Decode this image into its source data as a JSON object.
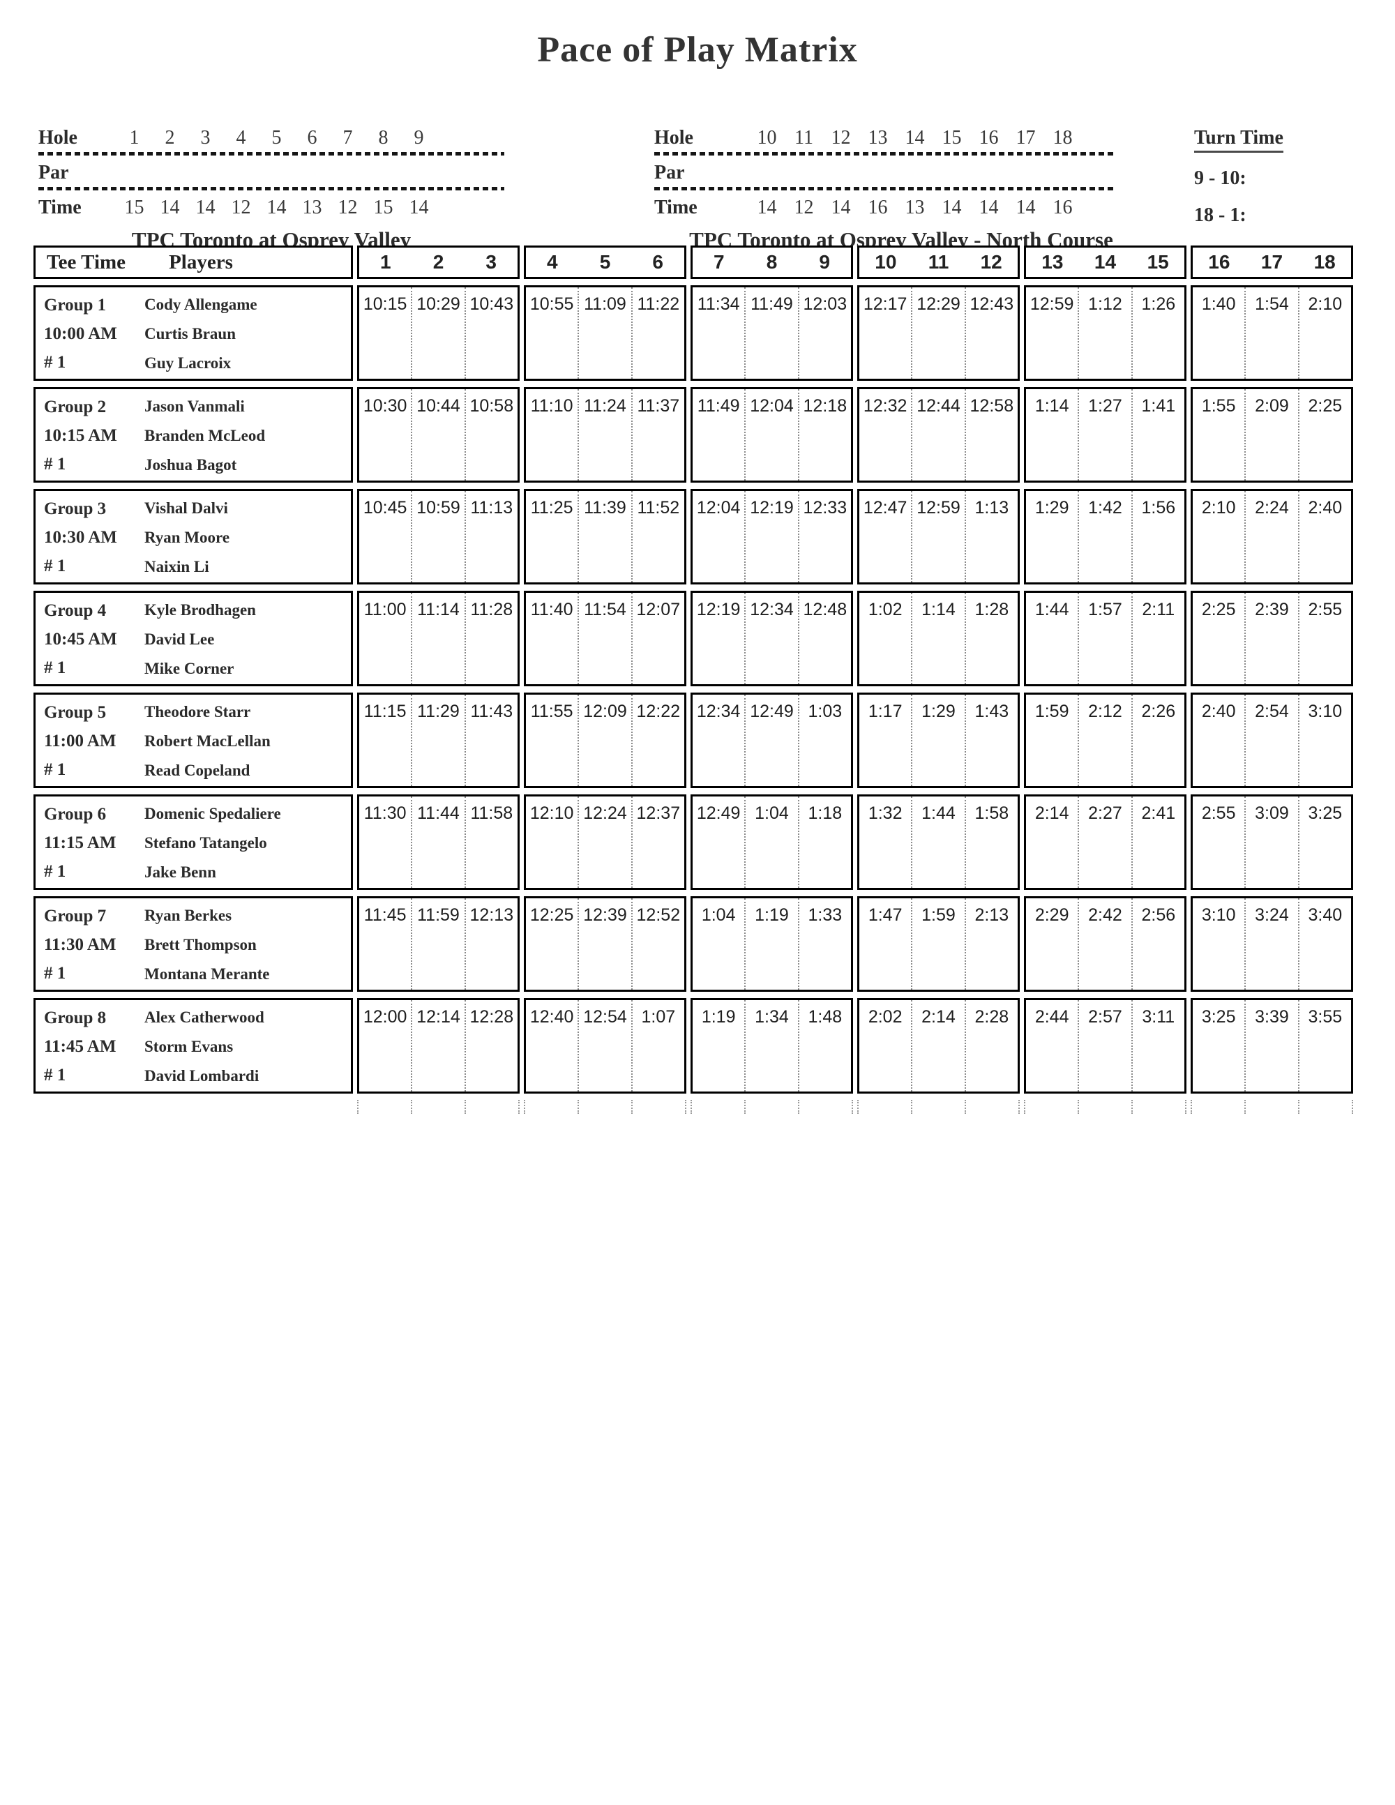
{
  "title": "Pace of Play Matrix",
  "front_nine": {
    "hole_label": "Hole",
    "par_label": "Par",
    "time_label": "Time",
    "holes": [
      "1",
      "2",
      "3",
      "4",
      "5",
      "6",
      "7",
      "8",
      "9"
    ],
    "times": [
      "15",
      "14",
      "14",
      "12",
      "14",
      "13",
      "12",
      "15",
      "14"
    ],
    "course": "TPC Toronto at Osprey Valley"
  },
  "back_nine": {
    "hole_label": "Hole",
    "par_label": "Par",
    "time_label": "Time",
    "holes": [
      "10",
      "11",
      "12",
      "13",
      "14",
      "15",
      "16",
      "17",
      "18"
    ],
    "times": [
      "14",
      "12",
      "14",
      "16",
      "13",
      "14",
      "14",
      "14",
      "16"
    ],
    "course": "TPC Toronto at Osprey Valley - North Course"
  },
  "turn_time": {
    "label": "Turn Time",
    "entries": [
      "9 - 10:",
      "18 - 1:"
    ]
  },
  "matrix": {
    "tee_time_header": "Tee Time",
    "players_header": "Players",
    "hole_blocks": [
      [
        "1",
        "2",
        "3"
      ],
      [
        "4",
        "5",
        "6"
      ],
      [
        "7",
        "8",
        "9"
      ],
      [
        "10",
        "11",
        "12"
      ],
      [
        "13",
        "14",
        "15"
      ],
      [
        "16",
        "17",
        "18"
      ]
    ],
    "groups": [
      {
        "name": "Group 1",
        "tee_time": "10:00 AM",
        "start": "# 1",
        "players": [
          "Cody Allengame",
          "Curtis Braun",
          "Guy Lacroix"
        ],
        "times": [
          [
            "10:15",
            "10:29",
            "10:43"
          ],
          [
            "10:55",
            "11:09",
            "11:22"
          ],
          [
            "11:34",
            "11:49",
            "12:03"
          ],
          [
            "12:17",
            "12:29",
            "12:43"
          ],
          [
            "12:59",
            "1:12",
            "1:26"
          ],
          [
            "1:40",
            "1:54",
            "2:10"
          ]
        ]
      },
      {
        "name": "Group 2",
        "tee_time": "10:15 AM",
        "start": "# 1",
        "players": [
          "Jason Vanmali",
          "Branden McLeod",
          "Joshua Bagot"
        ],
        "times": [
          [
            "10:30",
            "10:44",
            "10:58"
          ],
          [
            "11:10",
            "11:24",
            "11:37"
          ],
          [
            "11:49",
            "12:04",
            "12:18"
          ],
          [
            "12:32",
            "12:44",
            "12:58"
          ],
          [
            "1:14",
            "1:27",
            "1:41"
          ],
          [
            "1:55",
            "2:09",
            "2:25"
          ]
        ]
      },
      {
        "name": "Group 3",
        "tee_time": "10:30 AM",
        "start": "# 1",
        "players": [
          "Vishal Dalvi",
          "Ryan Moore",
          "Naixin Li"
        ],
        "times": [
          [
            "10:45",
            "10:59",
            "11:13"
          ],
          [
            "11:25",
            "11:39",
            "11:52"
          ],
          [
            "12:04",
            "12:19",
            "12:33"
          ],
          [
            "12:47",
            "12:59",
            "1:13"
          ],
          [
            "1:29",
            "1:42",
            "1:56"
          ],
          [
            "2:10",
            "2:24",
            "2:40"
          ]
        ]
      },
      {
        "name": "Group 4",
        "tee_time": "10:45 AM",
        "start": "# 1",
        "players": [
          "Kyle Brodhagen",
          "David Lee",
          "Mike Corner"
        ],
        "times": [
          [
            "11:00",
            "11:14",
            "11:28"
          ],
          [
            "11:40",
            "11:54",
            "12:07"
          ],
          [
            "12:19",
            "12:34",
            "12:48"
          ],
          [
            "1:02",
            "1:14",
            "1:28"
          ],
          [
            "1:44",
            "1:57",
            "2:11"
          ],
          [
            "2:25",
            "2:39",
            "2:55"
          ]
        ]
      },
      {
        "name": "Group 5",
        "tee_time": "11:00 AM",
        "start": "# 1",
        "players": [
          "Theodore Starr",
          "Robert MacLellan",
          "Read Copeland"
        ],
        "times": [
          [
            "11:15",
            "11:29",
            "11:43"
          ],
          [
            "11:55",
            "12:09",
            "12:22"
          ],
          [
            "12:34",
            "12:49",
            "1:03"
          ],
          [
            "1:17",
            "1:29",
            "1:43"
          ],
          [
            "1:59",
            "2:12",
            "2:26"
          ],
          [
            "2:40",
            "2:54",
            "3:10"
          ]
        ]
      },
      {
        "name": "Group 6",
        "tee_time": "11:15 AM",
        "start": "# 1",
        "players": [
          "Domenic Spedaliere",
          "Stefano Tatangelo",
          "Jake Benn"
        ],
        "times": [
          [
            "11:30",
            "11:44",
            "11:58"
          ],
          [
            "12:10",
            "12:24",
            "12:37"
          ],
          [
            "12:49",
            "1:04",
            "1:18"
          ],
          [
            "1:32",
            "1:44",
            "1:58"
          ],
          [
            "2:14",
            "2:27",
            "2:41"
          ],
          [
            "2:55",
            "3:09",
            "3:25"
          ]
        ]
      },
      {
        "name": "Group 7",
        "tee_time": "11:30 AM",
        "start": "# 1",
        "players": [
          "Ryan Berkes",
          "Brett Thompson",
          "Montana Merante"
        ],
        "times": [
          [
            "11:45",
            "11:59",
            "12:13"
          ],
          [
            "12:25",
            "12:39",
            "12:52"
          ],
          [
            "1:04",
            "1:19",
            "1:33"
          ],
          [
            "1:47",
            "1:59",
            "2:13"
          ],
          [
            "2:29",
            "2:42",
            "2:56"
          ],
          [
            "3:10",
            "3:24",
            "3:40"
          ]
        ]
      },
      {
        "name": "Group 8",
        "tee_time": "11:45 AM",
        "start": "# 1",
        "players": [
          "Alex Catherwood",
          "Storm Evans",
          "David Lombardi"
        ],
        "times": [
          [
            "12:00",
            "12:14",
            "12:28"
          ],
          [
            "12:40",
            "12:54",
            "1:07"
          ],
          [
            "1:19",
            "1:34",
            "1:48"
          ],
          [
            "2:02",
            "2:14",
            "2:28"
          ],
          [
            "2:44",
            "2:57",
            "3:11"
          ],
          [
            "3:25",
            "3:39",
            "3:55"
          ]
        ]
      }
    ]
  }
}
